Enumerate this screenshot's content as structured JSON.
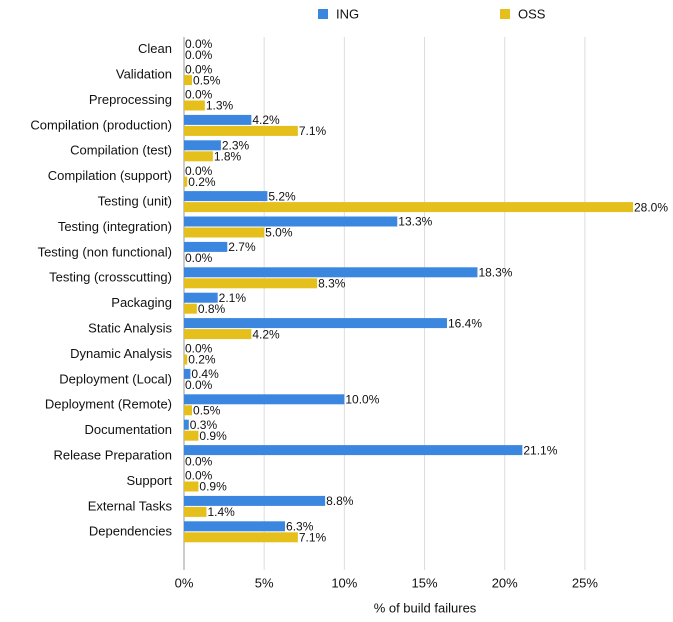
{
  "chart_data": {
    "type": "hbar",
    "xlabel": "% of build failures",
    "categories": [
      "Clean",
      "Validation",
      "Preprocessing",
      "Compilation (production)",
      "Compilation (test)",
      "Compilation (support)",
      "Testing (unit)",
      "Testing (integration)",
      "Testing (non functional)",
      "Testing (crosscutting)",
      "Packaging",
      "Static Analysis",
      "Dynamic Analysis",
      "Deployment (Local)",
      "Deployment (Remote)",
      "Documentation",
      "Release Preparation",
      "Support",
      "External Tasks",
      "Dependencies"
    ],
    "series": [
      {
        "name": "ING",
        "color": "#3b87e0",
        "values": [
          0,
          0,
          0,
          4.2,
          2.3,
          0,
          5.2,
          13.3,
          2.7,
          18.3,
          2.1,
          16.4,
          0,
          0.4,
          10.0,
          0.3,
          21.1,
          0,
          8.8,
          6.3
        ],
        "value_labels": [
          "0.0%",
          "0.0%",
          "0.0%",
          "4.2%",
          "2.3%",
          "0.0%",
          "5.2%",
          "13.3%",
          "2.7%",
          "18.3%",
          "2.1%",
          "16.4%",
          "0.0%",
          "0.4%",
          "10.0%",
          "0.3%",
          "21.1%",
          "0.0%",
          "8.8%",
          "6.3%"
        ]
      },
      {
        "name": "OSS",
        "color": "#e5c01c",
        "values": [
          0,
          0.5,
          1.3,
          7.1,
          1.8,
          0.2,
          28.0,
          5.0,
          0,
          8.3,
          0.8,
          4.2,
          0.2,
          0,
          0.5,
          0.9,
          0,
          0.9,
          1.4,
          7.1
        ],
        "value_labels": [
          "0.0%",
          "0.5%",
          "1.3%",
          "7.1%",
          "1.8%",
          "0.2%",
          "28.0%",
          "5.0%",
          "0.0%",
          "8.3%",
          "0.8%",
          "4.2%",
          "0.2%",
          "0.0%",
          "0.5%",
          "0.9%",
          "0.0%",
          "0.9%",
          "1.4%",
          "7.1%"
        ]
      }
    ],
    "xlim": [
      0,
      28
    ],
    "xticks": [
      {
        "value": 0,
        "label": "0%"
      },
      {
        "value": 5,
        "label": "5%"
      },
      {
        "value": 10,
        "label": "10%"
      },
      {
        "value": 15,
        "label": "15%"
      },
      {
        "value": 20,
        "label": "20%"
      },
      {
        "value": 25,
        "label": "25%"
      }
    ],
    "grid": true,
    "legend": "top"
  }
}
